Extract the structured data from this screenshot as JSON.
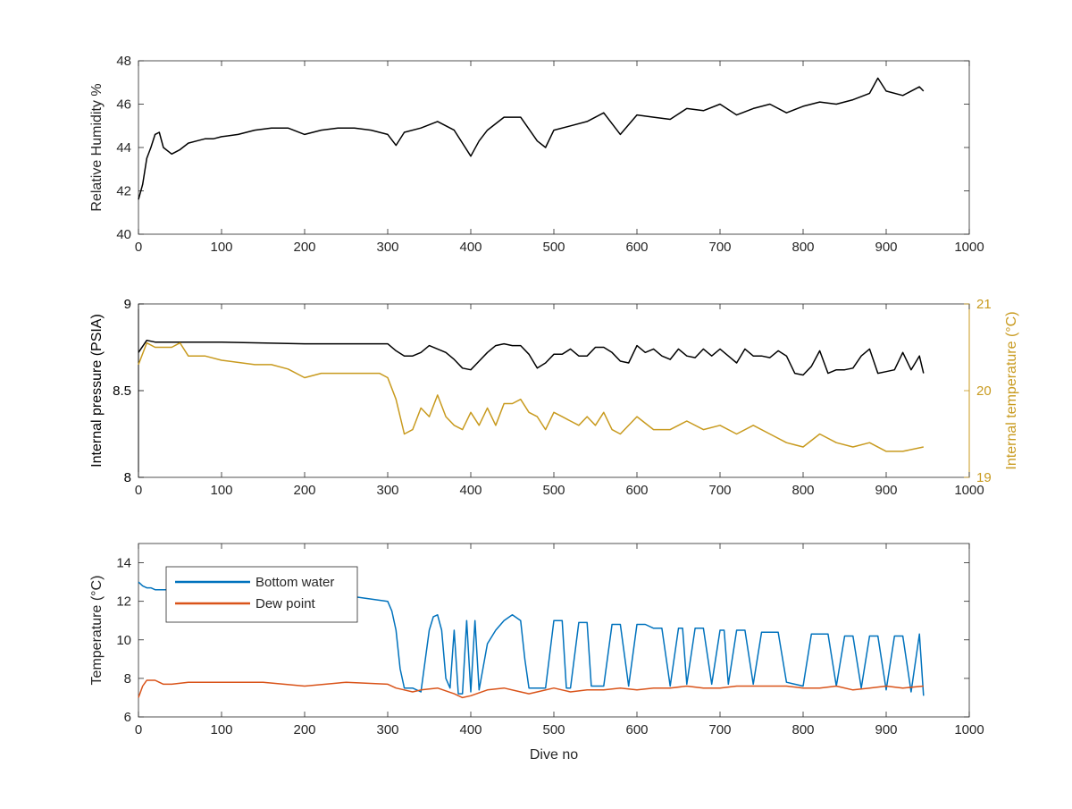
{
  "chart_data": [
    {
      "type": "line",
      "xlabel": "",
      "ylabel": "Relative Humidity %",
      "xlim": [
        0,
        1000
      ],
      "ylim": [
        40,
        48
      ],
      "xticks": [
        0,
        100,
        200,
        300,
        400,
        500,
        600,
        700,
        800,
        900,
        1000
      ],
      "yticks": [
        40,
        42,
        44,
        46,
        48
      ],
      "grid": false,
      "colors": {
        "series": "#000000"
      },
      "series": [
        {
          "name": "",
          "axis": "left",
          "x": [
            0,
            5,
            10,
            15,
            20,
            25,
            30,
            40,
            50,
            60,
            70,
            80,
            90,
            100,
            120,
            140,
            160,
            180,
            200,
            220,
            240,
            260,
            280,
            300,
            310,
            320,
            340,
            360,
            380,
            400,
            410,
            420,
            440,
            460,
            480,
            490,
            500,
            520,
            540,
            560,
            580,
            600,
            620,
            640,
            660,
            680,
            700,
            720,
            740,
            760,
            780,
            800,
            820,
            840,
            860,
            880,
            890,
            900,
            920,
            940,
            945
          ],
          "y": [
            41.6,
            42.3,
            43.5,
            44.0,
            44.6,
            44.7,
            44.0,
            43.7,
            43.9,
            44.2,
            44.3,
            44.4,
            44.4,
            44.5,
            44.6,
            44.8,
            44.9,
            44.9,
            44.6,
            44.8,
            44.9,
            44.9,
            44.8,
            44.6,
            44.1,
            44.7,
            44.9,
            45.2,
            44.8,
            43.6,
            44.3,
            44.8,
            45.4,
            45.4,
            44.3,
            44.0,
            44.8,
            45.0,
            45.2,
            45.6,
            44.6,
            45.5,
            45.4,
            45.3,
            45.8,
            45.7,
            46.0,
            45.5,
            45.8,
            46.0,
            45.6,
            45.9,
            46.1,
            46.0,
            46.2,
            46.5,
            47.2,
            46.6,
            46.4,
            46.8,
            46.6
          ]
        }
      ]
    },
    {
      "type": "line",
      "xlabel": "",
      "ylabel": "Internal pressure (PSIA)",
      "ylabel_right": "Internal temperature (°C)",
      "xlim": [
        0,
        1000
      ],
      "ylim": [
        8,
        9
      ],
      "ylim_right": [
        19,
        21
      ],
      "xticks": [
        0,
        100,
        200,
        300,
        400,
        500,
        600,
        700,
        800,
        900,
        1000
      ],
      "yticks": [
        8,
        8.5,
        9
      ],
      "yticks_right": [
        19,
        20,
        21
      ],
      "grid": false,
      "colors": {
        "left_axis": "#000000",
        "right_axis": "#C89A1E"
      },
      "series": [
        {
          "name": "",
          "axis": "left",
          "color": "#000000",
          "x": [
            0,
            10,
            20,
            50,
            100,
            200,
            300,
            310,
            320,
            330,
            340,
            350,
            360,
            370,
            380,
            390,
            400,
            410,
            420,
            430,
            440,
            450,
            460,
            470,
            480,
            490,
            500,
            510,
            520,
            530,
            540,
            550,
            560,
            570,
            580,
            590,
            600,
            610,
            620,
            630,
            640,
            650,
            660,
            670,
            680,
            690,
            700,
            710,
            720,
            730,
            740,
            750,
            760,
            770,
            780,
            790,
            800,
            810,
            820,
            830,
            840,
            850,
            860,
            870,
            880,
            890,
            900,
            910,
            920,
            930,
            940,
            945
          ],
          "y": [
            8.72,
            8.79,
            8.78,
            8.78,
            8.78,
            8.77,
            8.77,
            8.73,
            8.7,
            8.7,
            8.72,
            8.76,
            8.74,
            8.72,
            8.68,
            8.63,
            8.62,
            8.67,
            8.72,
            8.76,
            8.77,
            8.76,
            8.76,
            8.71,
            8.63,
            8.66,
            8.71,
            8.71,
            8.74,
            8.7,
            8.7,
            8.75,
            8.75,
            8.72,
            8.67,
            8.66,
            8.76,
            8.72,
            8.74,
            8.7,
            8.68,
            8.74,
            8.7,
            8.69,
            8.74,
            8.7,
            8.74,
            8.7,
            8.66,
            8.74,
            8.7,
            8.7,
            8.69,
            8.73,
            8.7,
            8.6,
            8.59,
            8.64,
            8.73,
            8.6,
            8.62,
            8.62,
            8.63,
            8.7,
            8.74,
            8.6,
            8.61,
            8.62,
            8.72,
            8.62,
            8.7,
            8.6
          ]
        },
        {
          "name": "",
          "axis": "right",
          "color": "#C89A1E",
          "x": [
            0,
            10,
            20,
            40,
            50,
            60,
            80,
            100,
            140,
            160,
            180,
            200,
            220,
            240,
            260,
            280,
            290,
            300,
            310,
            320,
            330,
            340,
            350,
            360,
            370,
            380,
            390,
            400,
            410,
            420,
            430,
            440,
            450,
            460,
            470,
            480,
            490,
            500,
            510,
            520,
            530,
            540,
            550,
            560,
            570,
            580,
            600,
            620,
            640,
            660,
            680,
            700,
            720,
            740,
            760,
            780,
            800,
            820,
            840,
            860,
            880,
            900,
            920,
            945
          ],
          "y": [
            20.3,
            20.55,
            20.5,
            20.5,
            20.55,
            20.4,
            20.4,
            20.35,
            20.3,
            20.3,
            20.25,
            20.15,
            20.2,
            20.2,
            20.2,
            20.2,
            20.2,
            20.15,
            19.9,
            19.5,
            19.55,
            19.8,
            19.7,
            19.95,
            19.7,
            19.6,
            19.55,
            19.75,
            19.6,
            19.8,
            19.6,
            19.85,
            19.85,
            19.9,
            19.75,
            19.7,
            19.55,
            19.75,
            19.7,
            19.65,
            19.6,
            19.7,
            19.6,
            19.75,
            19.55,
            19.5,
            19.7,
            19.55,
            19.55,
            19.65,
            19.55,
            19.6,
            19.5,
            19.6,
            19.5,
            19.4,
            19.35,
            19.5,
            19.4,
            19.35,
            19.4,
            19.3,
            19.3,
            19.35
          ]
        }
      ]
    },
    {
      "type": "line",
      "xlabel": "Dive no",
      "ylabel": "Temperature (°C)",
      "xlim": [
        0,
        1000
      ],
      "ylim": [
        6,
        15
      ],
      "xticks": [
        0,
        100,
        200,
        300,
        400,
        500,
        600,
        700,
        800,
        900,
        1000
      ],
      "yticks": [
        6,
        8,
        10,
        12,
        14
      ],
      "grid": false,
      "legend_position": "top-left",
      "colors": {
        "Bottom water": "#0072BD",
        "Dew point": "#D95319"
      },
      "series": [
        {
          "name": "Bottom water",
          "axis": "left",
          "color": "#0072BD",
          "x": [
            0,
            5,
            10,
            15,
            20,
            50,
            60,
            100,
            150,
            200,
            250,
            300,
            305,
            310,
            315,
            320,
            330,
            340,
            350,
            355,
            360,
            365,
            370,
            375,
            380,
            385,
            390,
            395,
            400,
            405,
            410,
            420,
            430,
            440,
            450,
            460,
            465,
            470,
            480,
            490,
            500,
            505,
            510,
            515,
            520,
            530,
            540,
            545,
            550,
            560,
            570,
            580,
            590,
            600,
            605,
            610,
            620,
            630,
            640,
            650,
            655,
            660,
            670,
            680,
            690,
            700,
            705,
            710,
            720,
            730,
            740,
            750,
            760,
            770,
            780,
            790,
            800,
            810,
            820,
            830,
            840,
            850,
            860,
            870,
            880,
            890,
            900,
            910,
            920,
            930,
            940,
            945
          ],
          "y": [
            13.0,
            12.8,
            12.7,
            12.7,
            12.6,
            12.6,
            12.5,
            12.5,
            12.5,
            12.4,
            12.3,
            12.0,
            11.5,
            10.5,
            8.5,
            7.5,
            7.5,
            7.3,
            10.5,
            11.2,
            11.3,
            10.5,
            8.0,
            7.5,
            10.5,
            7.2,
            7.2,
            11.0,
            7.3,
            11.0,
            7.4,
            9.8,
            10.5,
            11.0,
            11.3,
            11.0,
            9.0,
            7.5,
            7.5,
            7.5,
            11.0,
            11.0,
            11.0,
            7.5,
            7.5,
            10.9,
            10.9,
            7.6,
            7.6,
            7.6,
            10.8,
            10.8,
            7.6,
            10.8,
            10.8,
            10.8,
            10.6,
            10.6,
            7.6,
            10.6,
            10.6,
            7.7,
            10.6,
            10.6,
            7.7,
            10.5,
            10.5,
            7.7,
            10.5,
            10.5,
            7.7,
            10.4,
            10.4,
            10.4,
            7.8,
            7.7,
            7.6,
            10.3,
            10.3,
            10.3,
            7.6,
            10.2,
            10.2,
            7.5,
            10.2,
            10.2,
            7.4,
            10.2,
            10.2,
            7.3,
            10.3,
            7.1
          ]
        },
        {
          "name": "Dew point",
          "axis": "left",
          "color": "#D95319",
          "x": [
            0,
            5,
            10,
            20,
            30,
            40,
            60,
            100,
            150,
            200,
            250,
            300,
            310,
            320,
            330,
            340,
            360,
            380,
            390,
            400,
            420,
            440,
            460,
            470,
            480,
            500,
            520,
            540,
            560,
            580,
            600,
            620,
            640,
            660,
            680,
            700,
            720,
            740,
            760,
            780,
            800,
            820,
            840,
            860,
            880,
            900,
            920,
            945
          ],
          "y": [
            7.0,
            7.6,
            7.9,
            7.9,
            7.7,
            7.7,
            7.8,
            7.8,
            7.8,
            7.6,
            7.8,
            7.7,
            7.5,
            7.4,
            7.3,
            7.4,
            7.5,
            7.2,
            7.0,
            7.1,
            7.4,
            7.5,
            7.3,
            7.2,
            7.3,
            7.5,
            7.3,
            7.4,
            7.4,
            7.5,
            7.4,
            7.5,
            7.5,
            7.6,
            7.5,
            7.5,
            7.6,
            7.6,
            7.6,
            7.6,
            7.5,
            7.5,
            7.6,
            7.4,
            7.5,
            7.6,
            7.5,
            7.6
          ]
        }
      ]
    }
  ]
}
